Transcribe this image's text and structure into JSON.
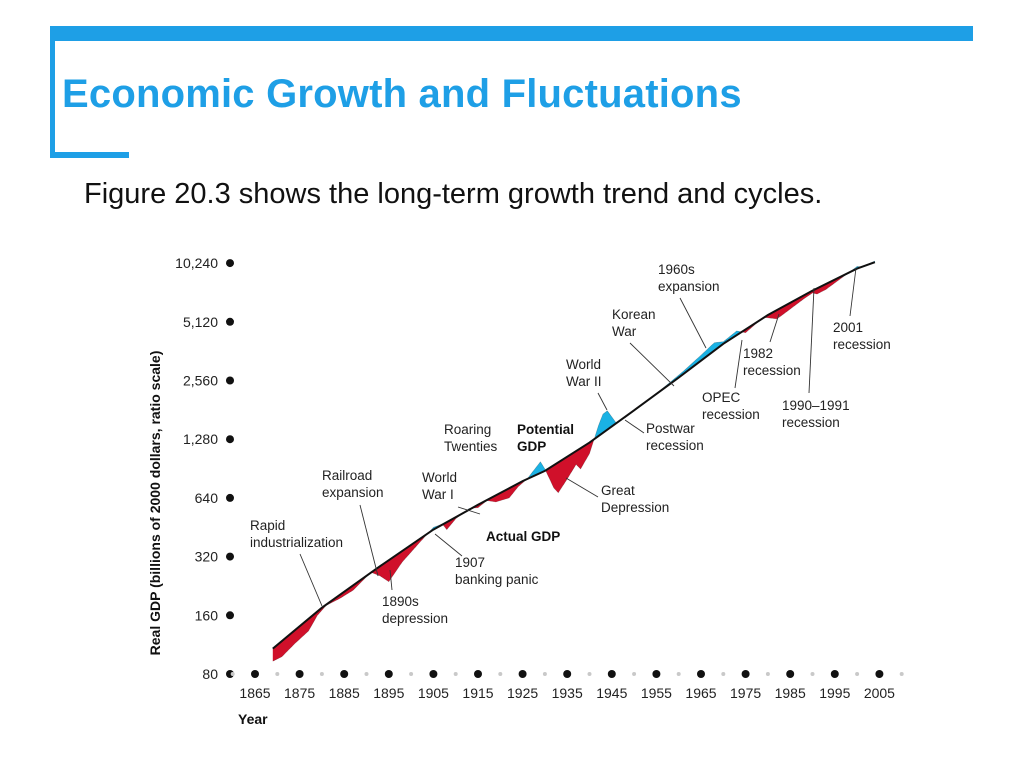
{
  "slide": {
    "title": "Economic Growth and Fluctuations",
    "subtitle": "Figure 20.3 shows the long-term growth trend and cycles.",
    "accent_color": "#1e9fe6"
  },
  "chart_data": {
    "type": "line",
    "scale": "log",
    "xlabel": "Year",
    "ylabel": "Real GDP (billions of 2000 dollars, ratio scale)",
    "ylim": [
      80,
      10240
    ],
    "xlim": [
      1860,
      2005
    ],
    "y_ticks": [
      80,
      160,
      320,
      640,
      1280,
      2560,
      5120,
      10240
    ],
    "y_tick_labels": [
      "80",
      "160",
      "320",
      "640",
      "1,280",
      "2,560",
      "5,120",
      "10,240"
    ],
    "x_ticks": [
      1865,
      1875,
      1885,
      1895,
      1905,
      1915,
      1925,
      1935,
      1945,
      1955,
      1965,
      1975,
      1985,
      1995,
      2005
    ],
    "grid": false,
    "colors": {
      "above_trend": "#1ab2e4",
      "below_trend": "#d0102a",
      "line": "#111111"
    },
    "series": [
      {
        "name": "Potential GDP",
        "x": [
          1869,
          1880,
          1892,
          1905,
          1915,
          1925,
          1930,
          1940,
          1950,
          1960,
          1970,
          1980,
          1990,
          2000,
          2004
        ],
        "values": [
          108,
          175,
          275,
          440,
          590,
          780,
          880,
          1230,
          1800,
          2650,
          3950,
          5550,
          7400,
          9600,
          10350
        ]
      },
      {
        "name": "Actual GDP",
        "x": [
          1869,
          1871,
          1874,
          1877,
          1879,
          1881,
          1884,
          1887,
          1891,
          1893,
          1895,
          1898,
          1902,
          1905,
          1907,
          1908,
          1910,
          1913,
          1915,
          1917,
          1919,
          1922,
          1924,
          1926,
          1929,
          1930,
          1932,
          1933,
          1935,
          1937,
          1938,
          1940,
          1942,
          1943,
          1944,
          1946,
          1948,
          1952,
          1955,
          1958,
          1961,
          1965,
          1968,
          1970,
          1973,
          1975,
          1979,
          1982,
          1983,
          1988,
          1990,
          1991,
          1993,
          1998,
          2000,
          2001,
          2004
        ],
        "values": [
          93,
          98,
          115,
          133,
          160,
          180,
          195,
          215,
          266,
          255,
          238,
          300,
          380,
          452,
          470,
          440,
          500,
          565,
          570,
          620,
          610,
          640,
          730,
          800,
          980,
          900,
          720,
          680,
          800,
          950,
          900,
          1080,
          1500,
          1720,
          1790,
          1550,
          1650,
          1930,
          2200,
          2500,
          2850,
          3450,
          4000,
          4050,
          4600,
          4500,
          5400,
          5300,
          5500,
          6700,
          7200,
          7100,
          7500,
          9100,
          9850,
          9800,
          10500
        ]
      }
    ],
    "annotations": [
      {
        "id": "rapid",
        "lines": [
          "Rapid",
          "industrialization"
        ],
        "year": 1878
      },
      {
        "id": "railroad",
        "lines": [
          "Railroad",
          "expansion"
        ],
        "year": 1890
      },
      {
        "id": "depression-1890s",
        "lines": [
          "1890s",
          "depression"
        ],
        "year": 1895
      },
      {
        "id": "ww1",
        "lines": [
          "World",
          "War I"
        ],
        "year": 1917
      },
      {
        "id": "panic-1907",
        "lines": [
          "1907",
          "banking panic"
        ],
        "year": 1907
      },
      {
        "id": "roaring",
        "lines": [
          "Roaring",
          "Twenties"
        ],
        "year": 1927
      },
      {
        "id": "potential",
        "lines": [
          "Potential",
          "GDP"
        ],
        "bold": true,
        "year": 1935
      },
      {
        "id": "actual",
        "lines": [
          "Actual GDP"
        ],
        "bold": true,
        "year": 1930
      },
      {
        "id": "great-depression",
        "lines": [
          "Great",
          "Depression"
        ],
        "year": 1934
      },
      {
        "id": "ww2",
        "lines": [
          "World",
          "War II"
        ],
        "year": 1944
      },
      {
        "id": "postwar",
        "lines": [
          "Postwar",
          "recession"
        ],
        "year": 1946
      },
      {
        "id": "korean",
        "lines": [
          "Korean",
          "War"
        ],
        "year": 1953
      },
      {
        "id": "expansion-1960s",
        "lines": [
          "1960s",
          "expansion"
        ],
        "year": 1965
      },
      {
        "id": "opec",
        "lines": [
          "OPEC",
          "recession"
        ],
        "year": 1975
      },
      {
        "id": "recession-1982",
        "lines": [
          "1982",
          "recession"
        ],
        "year": 1982
      },
      {
        "id": "recession-1990",
        "lines": [
          "1990–1991",
          "recession"
        ],
        "year": 1991
      },
      {
        "id": "recession-2001",
        "lines": [
          "2001",
          "recession"
        ],
        "year": 2001
      }
    ]
  }
}
